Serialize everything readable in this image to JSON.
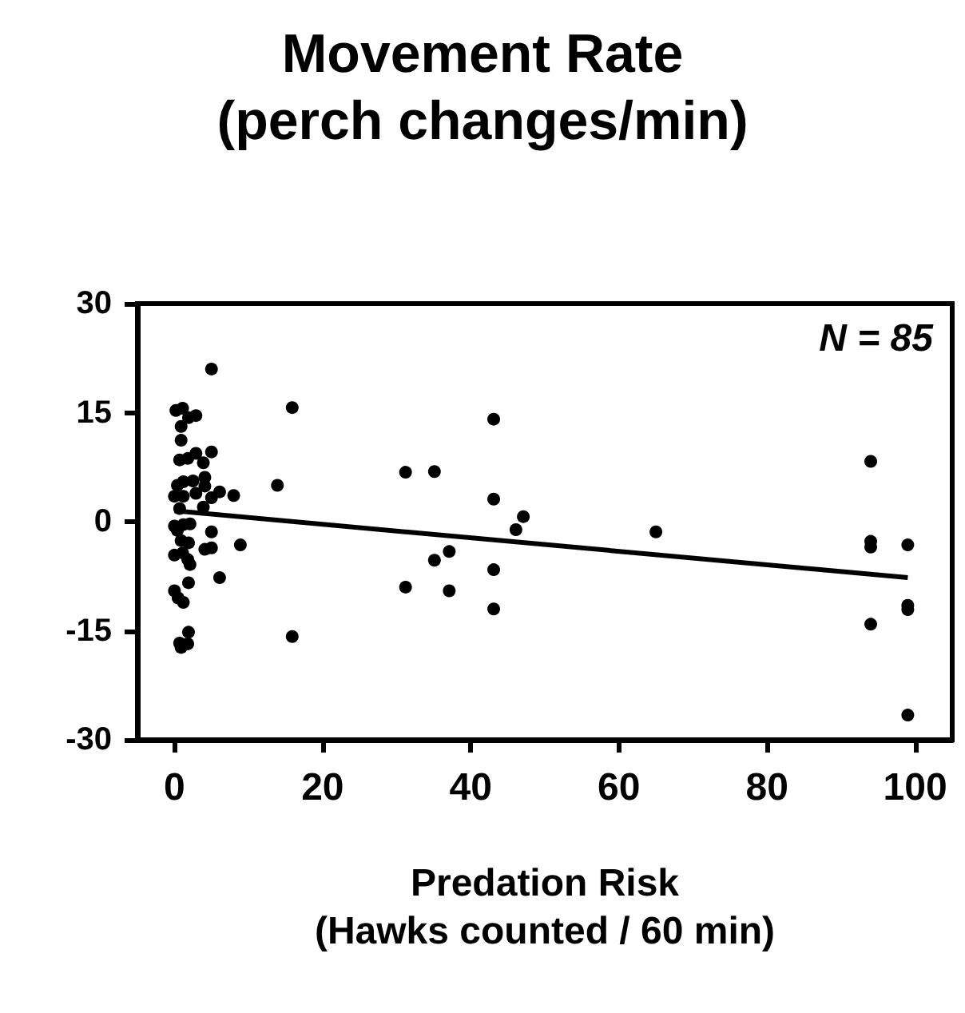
{
  "chart_data": {
    "type": "scatter",
    "title": "Movement Rate\n(perch changes/min)",
    "xlabel": "Predation Risk\n(Hawks counted / 60 min)",
    "annotations": [
      "N = 85"
    ],
    "marker": "circle",
    "grid": false,
    "xlim": [
      -5,
      105
    ],
    "xticks": [
      0,
      20,
      40,
      60,
      80,
      100
    ],
    "ylim": [
      -30,
      30
    ],
    "yticks": [
      -30,
      -15,
      0,
      15,
      30
    ],
    "series": [
      {
        "color": "#000000",
        "x": [
          5,
          0.2,
          1.1,
          1.9,
          2.9,
          0.9,
          0.9,
          0.7,
          1.8,
          2.9,
          5,
          3.9,
          0.4,
          1.2,
          2.5,
          4.1,
          0,
          1.2,
          2.9,
          4.1,
          5,
          6.1,
          8,
          13.9,
          0.7,
          3.9,
          0,
          1.2,
          2.1,
          0.4,
          0.9,
          1.9,
          5,
          0,
          1.1,
          1.8,
          2.1,
          4.1,
          5,
          8.9,
          6.1,
          1.9,
          0,
          0.5,
          1.2,
          1.9,
          0.7,
          1.8,
          0.9,
          15.9,
          15.9,
          43.1,
          31.2,
          35.1,
          43.1,
          47.1,
          46.1,
          65,
          37.1,
          35.1,
          43.1,
          31.2,
          37.1,
          43.1,
          94,
          94,
          94,
          99,
          99,
          99,
          94,
          99
        ],
        "values": [
          21,
          15.3,
          15.6,
          14.3,
          14.6,
          13.1,
          11.2,
          8.5,
          8.7,
          9.4,
          9.6,
          8.1,
          5,
          5.5,
          5.6,
          6.1,
          3.5,
          3.5,
          3.9,
          4.9,
          3.3,
          4.1,
          3.6,
          5,
          1.8,
          2,
          -0.6,
          -0.4,
          -0.3,
          -1.2,
          -2.6,
          -2.9,
          -1.4,
          -4.6,
          -4.3,
          -5.2,
          -5.9,
          -3.8,
          -3.6,
          -3.2,
          -7.7,
          -8.4,
          -9.5,
          -10.5,
          -11.1,
          -15.2,
          -16.7,
          -16.8,
          -17.3,
          15.7,
          -15.8,
          14.1,
          6.8,
          6.9,
          3.1,
          0.7,
          -1.1,
          -1.4,
          -4.1,
          -5.3,
          -6.6,
          -9,
          -9.5,
          -12,
          8.3,
          -2.7,
          -3.5,
          -3.2,
          -11.5,
          -12.1,
          -14.1,
          -26.6
        ]
      },
      {
        "type": "line",
        "color": "#000000",
        "marker": "none",
        "x": [
          0,
          99
        ],
        "values": [
          1.5,
          -7.7
        ]
      }
    ]
  }
}
